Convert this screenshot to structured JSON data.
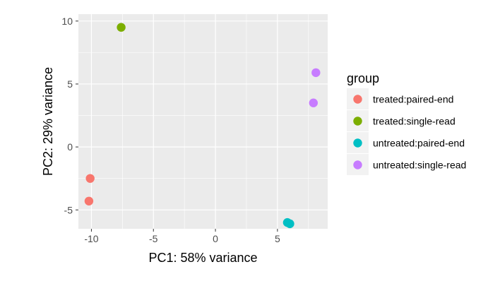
{
  "chart_data": {
    "type": "scatter",
    "xlabel": "PC1: 58% variance",
    "ylabel": "PC2: 29% variance",
    "xlim": [
      -11.05,
      9.05
    ],
    "ylim": [
      -6.5,
      10.55
    ],
    "x_ticks": [
      -10,
      -5,
      0,
      5
    ],
    "y_ticks": [
      -5,
      0,
      5,
      10
    ],
    "x_tick_labels": [
      "-10",
      "-5",
      "0",
      "5"
    ],
    "y_tick_labels": [
      "-5",
      "0",
      "5",
      "10"
    ],
    "grid": true,
    "legend": {
      "title": "group",
      "placement": "right"
    },
    "series": [
      {
        "name": "treated:paired-end",
        "color": "#F8766D",
        "points": [
          [
            -10.1,
            -2.5
          ],
          [
            -10.2,
            -4.3
          ]
        ]
      },
      {
        "name": "treated:single-read",
        "color": "#7CAE00",
        "points": [
          [
            -7.6,
            9.5
          ]
        ]
      },
      {
        "name": "untreated:paired-end",
        "color": "#00BFC4",
        "points": [
          [
            5.8,
            -6.0
          ],
          [
            6.0,
            -6.1
          ]
        ]
      },
      {
        "name": "untreated:single-read",
        "color": "#C77CFF",
        "points": [
          [
            8.1,
            5.9
          ],
          [
            7.9,
            3.5
          ]
        ]
      }
    ]
  },
  "colors": {
    "panel_background": "#EBEBEB",
    "grid_major": "#FFFFFF",
    "axis_text": "#4D4D4D",
    "axis_title": "#000000"
  }
}
